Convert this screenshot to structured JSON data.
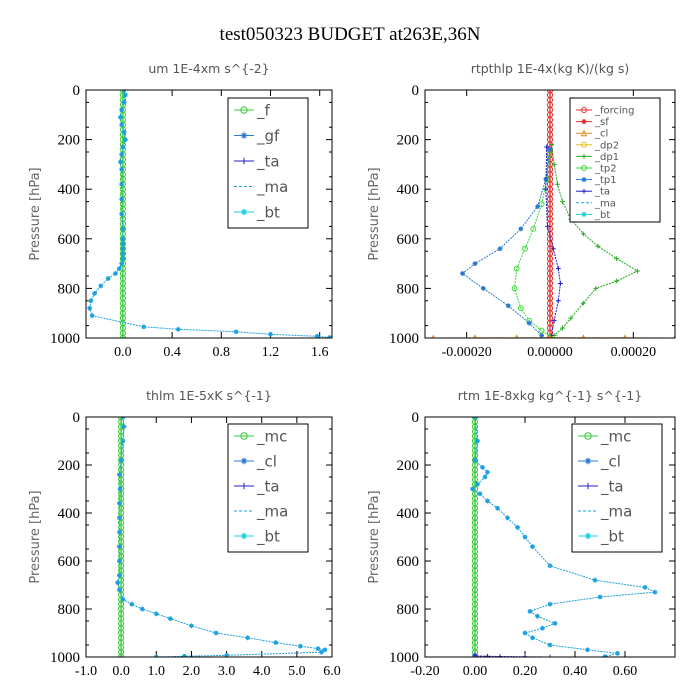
{
  "title": "test050323  BUDGET at263E,36N",
  "chart_data": [
    {
      "type": "line",
      "title": "um   1E-4xm s^{-2}",
      "ylabel": "Pressure [hPa]",
      "ylim": [
        1000,
        0
      ],
      "xlim": [
        -0.3,
        1.7
      ],
      "yticks": [
        "0",
        "200",
        "400",
        "600",
        "800",
        "1000"
      ],
      "xticks": [
        "0.0",
        "0.4",
        "0.8",
        "1.2",
        "1.6"
      ],
      "xtick_values": [
        0,
        0.4,
        0.8,
        1.2,
        1.6
      ],
      "legend": [
        "_f",
        "_gf",
        "_ta",
        "_ma",
        "_bt"
      ],
      "series": [
        {
          "name": "_f",
          "color": "#33cc33",
          "marker": "circle",
          "x": [
            0,
            0,
            0,
            0,
            0,
            0,
            0,
            0,
            0,
            0,
            0,
            0,
            0,
            0,
            0,
            0,
            0,
            0,
            0,
            0,
            0,
            0,
            0,
            0,
            0,
            0,
            0,
            0,
            0,
            0,
            0,
            0,
            0,
            0,
            0,
            0,
            0,
            0,
            0,
            0,
            0,
            0,
            0,
            0,
            0,
            0,
            0,
            0,
            0,
            0,
            0
          ],
          "y": [
            0,
            20,
            40,
            60,
            80,
            100,
            120,
            140,
            160,
            180,
            200,
            220,
            240,
            260,
            280,
            300,
            320,
            340,
            360,
            380,
            400,
            420,
            440,
            460,
            480,
            500,
            520,
            540,
            560,
            580,
            600,
            620,
            640,
            660,
            680,
            700,
            720,
            740,
            760,
            780,
            800,
            820,
            840,
            860,
            880,
            900,
            920,
            940,
            960,
            980,
            1000
          ]
        },
        {
          "name": "_bt",
          "color": "#1aa0e0",
          "marker": "star",
          "x": [
            0.01,
            0.02,
            0.01,
            -0.01,
            -0.02,
            -0.01,
            0.01,
            0.02,
            0.0,
            -0.01,
            -0.02,
            -0.01,
            -0.01,
            -0.01,
            -0.01,
            0.0,
            0.0,
            0.0,
            0.0,
            0.0,
            0.0,
            -0.01,
            -0.03,
            -0.06,
            -0.12,
            -0.18,
            -0.23,
            -0.26,
            -0.27,
            -0.25,
            0.17,
            0.45,
            0.92,
            1.2,
            1.58,
            1.68
          ],
          "y": [
            0,
            20,
            50,
            80,
            110,
            140,
            170,
            200,
            230,
            260,
            290,
            320,
            380,
            440,
            500,
            560,
            600,
            620,
            640,
            660,
            680,
            700,
            720,
            740,
            760,
            790,
            820,
            850,
            880,
            910,
            955,
            965,
            975,
            985,
            993,
            998
          ]
        }
      ]
    },
    {
      "type": "line",
      "title": "rtpthlp   1E-4x(kg K)/(kg s)",
      "ylabel": "Pressure [hPa]",
      "ylim": [
        1000,
        0
      ],
      "xlim": [
        -0.0003,
        0.0003
      ],
      "yticks": [
        "0",
        "200",
        "400",
        "600",
        "800",
        "1000"
      ],
      "xticks": [
        "-0.00020",
        "0.00000",
        "0.00020"
      ],
      "xtick_values": [
        -0.0002,
        0.0,
        0.0002
      ],
      "legend": [
        "_forcing",
        "_sf",
        "_cl",
        "_dp2",
        "_dp1",
        "_tp2",
        "_tp1",
        "_ta",
        "_ma",
        "_bt"
      ],
      "series": [
        {
          "name": "_forcing",
          "color": "#e03030",
          "marker": "circle",
          "x": [
            0,
            0,
            0,
            0,
            0,
            0,
            0,
            0,
            0,
            0,
            0,
            0,
            0,
            0,
            0,
            0,
            0,
            0,
            0,
            0,
            0,
            0,
            0,
            0,
            0,
            0,
            0,
            0,
            0,
            0,
            0,
            0,
            0,
            0,
            0,
            0,
            0,
            0,
            0,
            0,
            0,
            0,
            0,
            0,
            0,
            0,
            0,
            0,
            0,
            0,
            0
          ],
          "y": [
            0,
            20,
            40,
            60,
            80,
            100,
            120,
            140,
            160,
            180,
            200,
            220,
            240,
            260,
            280,
            300,
            320,
            340,
            360,
            380,
            400,
            420,
            440,
            460,
            480,
            500,
            520,
            540,
            560,
            580,
            600,
            620,
            640,
            660,
            680,
            700,
            720,
            740,
            760,
            780,
            800,
            820,
            840,
            860,
            880,
            900,
            920,
            940,
            960,
            980,
            1000
          ]
        },
        {
          "name": "_dp1",
          "color": "#22aa22",
          "marker": "plus",
          "x": [
            4e-06,
            1e-05,
            1.8e-05,
            3e-05,
            5e-05,
            8e-05,
            0.000115,
            0.00016,
            0.00021,
            0.00016,
            0.00011,
            8e-05,
            5e-05,
            3e-05,
            1e-05
          ],
          "y": [
            220,
            300,
            380,
            450,
            520,
            580,
            630,
            680,
            730,
            770,
            800,
            860,
            920,
            960,
            990
          ]
        },
        {
          "name": "_tp2",
          "color": "#33dd33",
          "marker": "circle",
          "x": [
            -2e-06,
            -8e-06,
            -2e-05,
            -4e-05,
            -6e-05,
            -8e-05,
            -8.5e-05,
            -7e-05,
            -5e-05,
            -2e-05,
            0.0
          ],
          "y": [
            260,
            360,
            460,
            560,
            640,
            720,
            800,
            880,
            930,
            970,
            995
          ]
        },
        {
          "name": "_tp1",
          "color": "#2a7ad0",
          "marker": "star",
          "x": [
            0.0,
            -1e-05,
            -3e-05,
            -7e-05,
            -0.00012,
            -0.00018,
            -0.00021,
            -0.00016,
            -0.0001,
            -5e-05,
            -2e-05
          ],
          "y": [
            240,
            360,
            470,
            560,
            640,
            700,
            740,
            800,
            870,
            940,
            990
          ]
        },
        {
          "name": "_ta",
          "color": "#2222cc",
          "marker": "plus",
          "x": [
            -8e-06,
            -1e-05,
            -6e-06,
            8e-06,
            2e-05,
            2.5e-05,
            2e-05,
            1e-05,
            3e-06
          ],
          "y": [
            230,
            400,
            550,
            640,
            720,
            780,
            850,
            930,
            990
          ]
        },
        {
          "name": "_cl",
          "color": "#e09020",
          "marker": "triangle",
          "x": [
            -0.00028,
            -0.00018,
            -8e-05,
            0.0,
            8e-05,
            0.00018,
            0.0003
          ],
          "y": [
            1000,
            999,
            999,
            998,
            999,
            999,
            1000
          ]
        }
      ]
    },
    {
      "type": "line",
      "title": "thlm   1E-5xK s^{-1}",
      "ylabel": "Pressure [hPa]",
      "ylim": [
        1000,
        0
      ],
      "xlim": [
        -1.0,
        6.0
      ],
      "yticks": [
        "0",
        "200",
        "400",
        "600",
        "800",
        "1000"
      ],
      "xticks": [
        "-1.0",
        "0.0",
        "1.0",
        "2.0",
        "3.0",
        "4.0",
        "5.0",
        "6.0"
      ],
      "xtick_values": [
        -1,
        0,
        1,
        2,
        3,
        4,
        5,
        6
      ],
      "legend": [
        "_mc",
        "_cl",
        "_ta",
        "_ma",
        "_bt"
      ],
      "series": [
        {
          "name": "_mc",
          "color": "#33cc33",
          "marker": "circle",
          "x": [
            0,
            0,
            0,
            0,
            0,
            0,
            0,
            0,
            0,
            0,
            0,
            0,
            0,
            0,
            0,
            0,
            0,
            0,
            0,
            0,
            0,
            0,
            0,
            0,
            0,
            0,
            0,
            0,
            0,
            0,
            0,
            0,
            0,
            0,
            0,
            0,
            0,
            0,
            0,
            0,
            0,
            0,
            0,
            0,
            0,
            0,
            0,
            0,
            0,
            0,
            0
          ],
          "y": [
            0,
            20,
            40,
            60,
            80,
            100,
            120,
            140,
            160,
            180,
            200,
            220,
            240,
            260,
            280,
            300,
            320,
            340,
            360,
            380,
            400,
            420,
            440,
            460,
            480,
            500,
            520,
            540,
            560,
            580,
            600,
            620,
            640,
            660,
            680,
            700,
            720,
            740,
            760,
            780,
            800,
            820,
            840,
            860,
            880,
            900,
            920,
            940,
            960,
            980,
            1000
          ]
        },
        {
          "name": "_bt",
          "color": "#1aa0e0",
          "marker": "star",
          "x": [
            0.05,
            0.08,
            0.05,
            0.0,
            -0.05,
            -0.03,
            -0.05,
            -0.05,
            -0.05,
            -0.05,
            -0.05,
            -0.05,
            -0.1,
            -0.05,
            0.05,
            0.3,
            0.6,
            1.0,
            1.4,
            2.0,
            2.7,
            3.6,
            4.4,
            5.1,
            5.6,
            5.8,
            5.7,
            3.0,
            1.8,
            1.0
          ],
          "y": [
            0,
            40,
            100,
            180,
            240,
            300,
            360,
            420,
            480,
            540,
            600,
            660,
            690,
            720,
            760,
            780,
            800,
            820,
            840,
            870,
            900,
            920,
            940,
            955,
            965,
            970,
            980,
            993,
            997,
            1000
          ]
        }
      ]
    },
    {
      "type": "line",
      "title": "rtm   1E-8xkg kg^{-1} s^{-1}",
      "ylabel": "Pressure [hPa]",
      "ylim": [
        1000,
        0
      ],
      "xlim": [
        -0.2,
        0.8
      ],
      "yticks": [
        "0",
        "200",
        "400",
        "600",
        "800",
        "1000"
      ],
      "xticks": [
        "-0.20",
        "0.00",
        "0.20",
        "0.40",
        "0.60"
      ],
      "xtick_values": [
        -0.2,
        0.0,
        0.2,
        0.4,
        0.6
      ],
      "legend": [
        "_mc",
        "_cl",
        "_ta",
        "_ma",
        "_bt"
      ],
      "series": [
        {
          "name": "_mc",
          "color": "#33cc33",
          "marker": "circle",
          "x": [
            0,
            0,
            0,
            0,
            0,
            0,
            0,
            0,
            0,
            0,
            0,
            0,
            0,
            0,
            0,
            0,
            0,
            0,
            0,
            0,
            0,
            0,
            0,
            0,
            0,
            0,
            0,
            0,
            0,
            0,
            0,
            0,
            0,
            0,
            0,
            0,
            0,
            0,
            0,
            0,
            0,
            0,
            0,
            0,
            0,
            0,
            0,
            0,
            0,
            0,
            0
          ],
          "y": [
            0,
            20,
            40,
            60,
            80,
            100,
            120,
            140,
            160,
            180,
            200,
            220,
            240,
            260,
            280,
            300,
            320,
            340,
            360,
            380,
            400,
            420,
            440,
            460,
            480,
            500,
            520,
            540,
            560,
            580,
            600,
            620,
            640,
            660,
            680,
            700,
            720,
            740,
            760,
            780,
            800,
            820,
            840,
            860,
            880,
            900,
            920,
            940,
            960,
            980,
            1000
          ]
        },
        {
          "name": "_bt",
          "color": "#1aa0e0",
          "marker": "star",
          "x": [
            0.0,
            0.01,
            0.0,
            0.03,
            0.05,
            0.04,
            0.01,
            -0.01,
            0.02,
            0.05,
            0.09,
            0.13,
            0.17,
            0.2,
            0.23,
            0.3,
            0.48,
            0.68,
            0.72,
            0.5,
            0.3,
            0.22,
            0.25,
            0.32,
            0.27,
            0.2,
            0.23,
            0.3,
            0.45,
            0.57,
            0.52
          ],
          "y": [
            0,
            100,
            180,
            210,
            230,
            250,
            280,
            300,
            320,
            350,
            380,
            420,
            460,
            500,
            540,
            620,
            680,
            710,
            730,
            750,
            780,
            810,
            830,
            860,
            880,
            900,
            920,
            950,
            970,
            985,
            998
          ]
        },
        {
          "name": "_ta",
          "color": "#2222cc",
          "marker": "plus",
          "x": [
            0.0,
            0.0,
            0.05,
            0.1,
            0.2,
            0.3
          ],
          "y": [
            990,
            995,
            997,
            998,
            999,
            1000
          ]
        }
      ]
    }
  ]
}
